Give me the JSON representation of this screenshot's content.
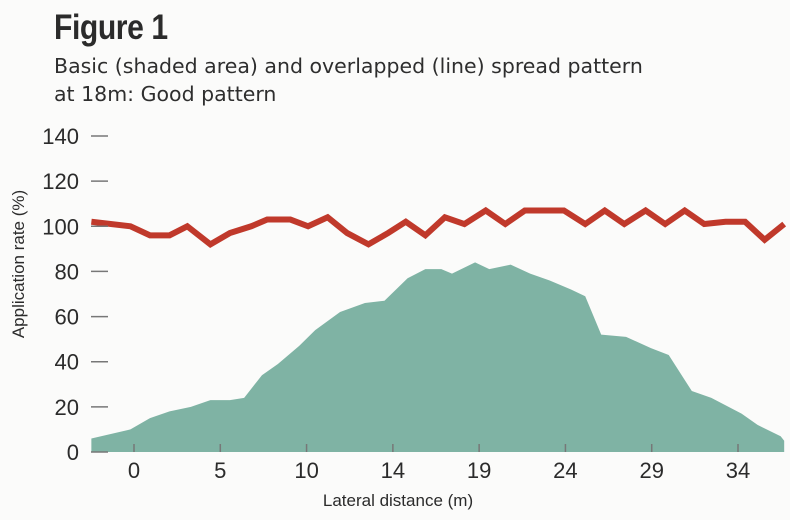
{
  "figure": {
    "title": "Figure 1",
    "subtitle_line1": "Basic (shaded area) and overlapped (line) spread pattern",
    "subtitle_line2": "at 18m: Good pattern"
  },
  "colors": {
    "area": "#7fb3a4",
    "line": "#c0392b",
    "tick": "#777777",
    "text": "#2b2b2b"
  },
  "chart_data": {
    "type": "area",
    "title": "Figure 1",
    "subtitle": "Basic (shaded area) and overlapped (line) spread pattern at 18m: Good pattern",
    "xlabel": "Lateral distance (m)",
    "ylabel": "Application rate (%)",
    "x_ticks": [
      "0",
      "5",
      "10",
      "14",
      "19",
      "24",
      "29",
      "34"
    ],
    "y_ticks": [
      "0",
      "20",
      "40",
      "60",
      "80",
      "100",
      "120",
      "140"
    ],
    "xlim": [
      -2.4,
      36.6
    ],
    "ylim": [
      0,
      140
    ],
    "grid": false,
    "legend": "none",
    "series": [
      {
        "name": "Basic (shaded area)",
        "style": "area",
        "x": [
          -2.4,
          -0.2,
          0.9,
          2.0,
          3.2,
          4.3,
          5.4,
          6.2,
          7.2,
          8.1,
          9.3,
          10.2,
          11.6,
          13.0,
          14.1,
          15.4,
          16.4,
          17.3,
          17.9,
          19.2,
          20.0,
          21.2,
          22.3,
          23.4,
          24.6,
          25.4,
          26.3,
          27.7,
          29.1,
          30.1,
          31.4,
          32.5,
          34.2,
          35.1,
          36.4,
          36.6
        ],
        "y": [
          6,
          10,
          15,
          18,
          20,
          23,
          23,
          24,
          34,
          39,
          47,
          54,
          62,
          66,
          67,
          77,
          81,
          81,
          79,
          84,
          81,
          83,
          79,
          76,
          72,
          69,
          52,
          51,
          46,
          43,
          27,
          24,
          17,
          12,
          7,
          5
        ]
      },
      {
        "name": "Overlapped (line)",
        "style": "line",
        "x": [
          -2.4,
          -0.2,
          0.9,
          2.0,
          3.0,
          4.3,
          5.4,
          6.6,
          7.5,
          8.8,
          9.8,
          10.9,
          12.0,
          13.2,
          14.3,
          15.3,
          16.4,
          17.5,
          18.6,
          19.8,
          20.9,
          22.0,
          23.1,
          24.2,
          25.4,
          26.5,
          27.6,
          28.8,
          29.9,
          31.0,
          32.1,
          33.3,
          34.4,
          35.5,
          36.6
        ],
        "y": [
          102,
          100,
          96,
          96,
          100,
          92,
          97,
          100,
          103,
          103,
          100,
          104,
          97,
          92,
          97,
          102,
          96,
          104,
          101,
          107,
          101,
          107,
          107,
          107,
          101,
          107,
          101,
          107,
          101,
          107,
          101,
          102,
          102,
          94,
          101
        ]
      }
    ]
  }
}
